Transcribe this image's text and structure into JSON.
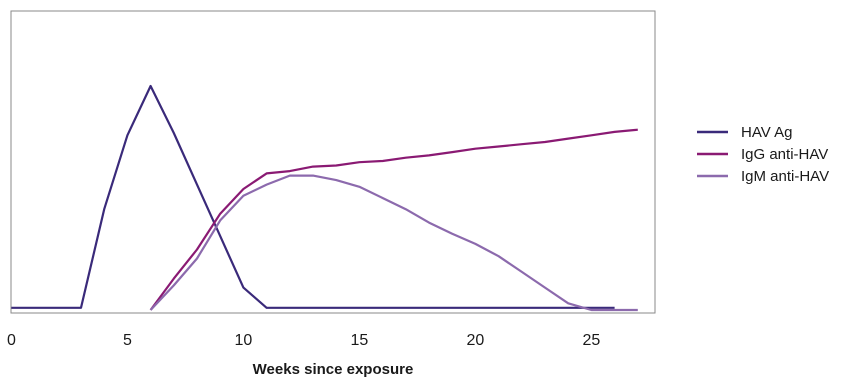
{
  "chart_data": {
    "type": "line",
    "title": "",
    "xlabel": "Weeks since exposure",
    "ylabel": "",
    "xlim": [
      0,
      28
    ],
    "ylim": [
      0,
      100
    ],
    "x_ticks": [
      0,
      5,
      10,
      15,
      20,
      25
    ],
    "x_tick_labels": [
      "0",
      "5",
      "10",
      "15",
      "20",
      "25"
    ],
    "grid": false,
    "legend_position": "right",
    "series": [
      {
        "name": "HAV Ag",
        "color": "#3a2a7a",
        "x": [
          0,
          3,
          4,
          5,
          6,
          7,
          8,
          9,
          10,
          11,
          26
        ],
        "y": [
          1,
          1,
          45,
          78,
          100,
          79,
          56,
          33,
          10,
          1,
          1
        ]
      },
      {
        "name": "IgG anti-HAV",
        "color": "#8a1a73",
        "x": [
          6,
          7,
          8,
          9,
          10,
          11,
          12,
          13,
          14,
          15,
          16,
          17,
          18,
          19,
          20,
          21,
          22,
          23,
          24,
          25,
          26,
          27
        ],
        "y": [
          0,
          14,
          27,
          43,
          54,
          61,
          62,
          64,
          64.5,
          66,
          66.5,
          68,
          69,
          70.5,
          72,
          73,
          74,
          75,
          76.5,
          78,
          79.5,
          80.5
        ]
      },
      {
        "name": "IgM anti-HAV",
        "color": "#8c6aad",
        "x": [
          6,
          7,
          8,
          9,
          10,
          11,
          12,
          13,
          14,
          15,
          16,
          17,
          18,
          19,
          20,
          21,
          22,
          23,
          24,
          25,
          26,
          27
        ],
        "y": [
          0,
          11,
          23,
          40,
          51,
          56,
          60,
          60,
          58,
          55,
          50,
          45,
          39,
          34,
          29.5,
          24,
          17,
          10,
          3,
          0,
          0,
          0
        ]
      }
    ]
  }
}
